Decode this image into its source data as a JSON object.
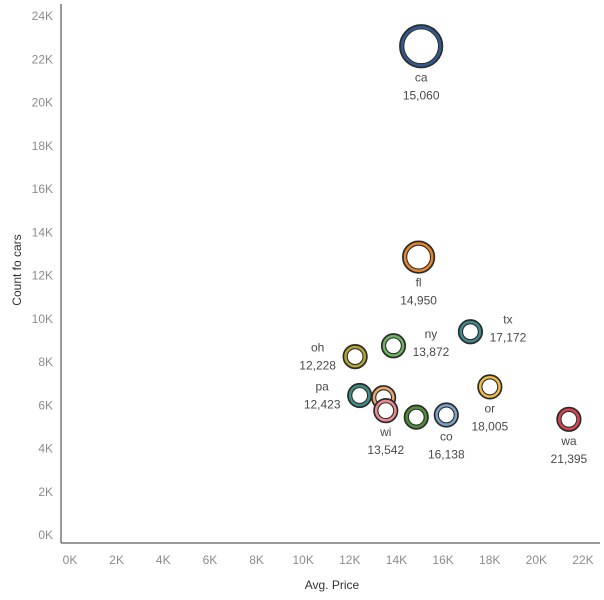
{
  "chart_data": {
    "type": "scatter",
    "title": "",
    "xlabel": "Avg. Price",
    "ylabel": "Count fo cars",
    "xlim": [
      0,
      22500
    ],
    "ylim": [
      0,
      24000
    ],
    "x_ticks": [
      0,
      2000,
      4000,
      6000,
      8000,
      10000,
      12000,
      14000,
      16000,
      18000,
      20000,
      22000
    ],
    "x_tick_labels": [
      "0K",
      "2K",
      "4K",
      "6K",
      "8K",
      "10K",
      "12K",
      "14K",
      "16K",
      "18K",
      "20K",
      "22K"
    ],
    "y_ticks": [
      0,
      2000,
      4000,
      6000,
      8000,
      10000,
      12000,
      14000,
      16000,
      18000,
      20000,
      22000,
      24000
    ],
    "y_tick_labels": [
      "0K",
      "2K",
      "4K",
      "6K",
      "8K",
      "10K",
      "12K",
      "14K",
      "16K",
      "18K",
      "20K",
      "22K",
      "24K"
    ],
    "grid": false,
    "marker": "hollow circle, size encodes count",
    "points": [
      {
        "id": "ca",
        "state": "ca",
        "x": 15060,
        "y": 22600,
        "color": "#2f5a8f",
        "label": "15,060",
        "labeled": true,
        "label_pos": "below",
        "size_level": 3
      },
      {
        "id": "fl",
        "state": "fl",
        "x": 14950,
        "y": 12850,
        "color": "#e8852b",
        "label": "14,950",
        "labeled": true,
        "label_pos": "below",
        "size_level": 2
      },
      {
        "id": "tx",
        "state": "tx",
        "x": 17172,
        "y": 9400,
        "color": "#3f8a8e",
        "label": "17,172",
        "labeled": true,
        "label_pos": "right",
        "size_level": 1
      },
      {
        "id": "ny",
        "state": "ny",
        "x": 13872,
        "y": 8750,
        "color": "#6cb45f",
        "label": "13,872",
        "labeled": true,
        "label_pos": "right",
        "size_level": 1
      },
      {
        "id": "oh",
        "state": "oh",
        "x": 12228,
        "y": 8250,
        "color": "#b5a531",
        "label": "12,228",
        "labeled": true,
        "label_pos": "left",
        "size_level": 1
      },
      {
        "id": "or",
        "state": "or",
        "x": 18005,
        "y": 6850,
        "color": "#efbc45",
        "label": "18,005",
        "labeled": true,
        "label_pos": "below",
        "size_level": 1
      },
      {
        "id": "pa",
        "state": "pa",
        "x": 12423,
        "y": 6450,
        "color": "#3c8d83",
        "label": "12,423",
        "labeled": true,
        "label_pos": "left",
        "size_level": 1
      },
      {
        "id": "unlabeled-peach",
        "state": "",
        "x": 13450,
        "y": 6350,
        "color": "#e8a66a",
        "label": "",
        "labeled": false,
        "label_pos": "",
        "size_level": 1
      },
      {
        "id": "wi",
        "state": "wi",
        "x": 13542,
        "y": 5750,
        "color": "#ee8a8f",
        "label": "13,542",
        "labeled": true,
        "label_pos": "below",
        "size_level": 1
      },
      {
        "id": "unlabeled-green",
        "state": "",
        "x": 14850,
        "y": 5450,
        "color": "#4d8e3a",
        "label": "",
        "labeled": false,
        "label_pos": "",
        "size_level": 1
      },
      {
        "id": "co",
        "state": "co",
        "x": 16138,
        "y": 5550,
        "color": "#7aa3d0",
        "label": "16,138",
        "labeled": true,
        "label_pos": "below",
        "size_level": 1
      },
      {
        "id": "wa",
        "state": "wa",
        "x": 21395,
        "y": 5350,
        "color": "#d9434f",
        "label": "21,395",
        "labeled": true,
        "label_pos": "below",
        "size_level": 1
      }
    ]
  }
}
